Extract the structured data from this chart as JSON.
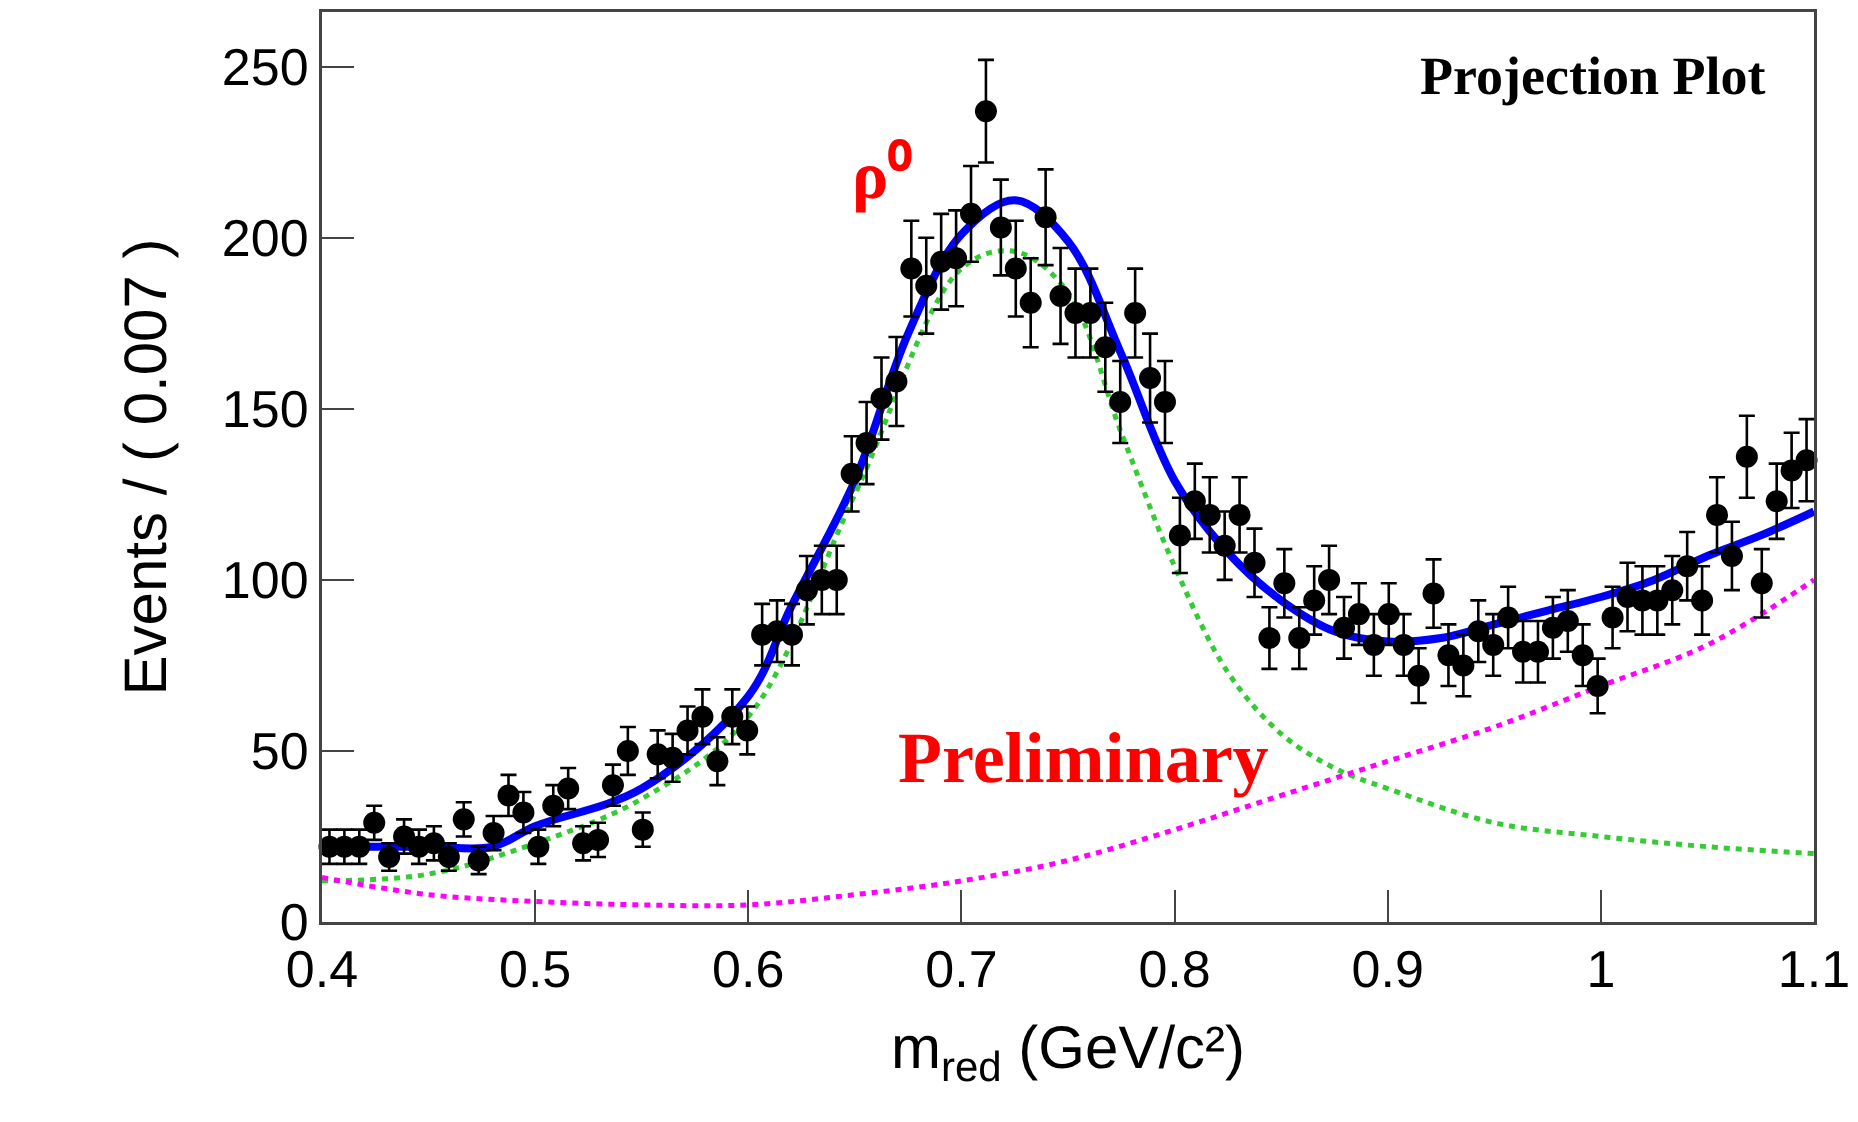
{
  "chart_data": {
    "type": "scatter",
    "xlabel": "m$_{red}$ (GeV/c²)",
    "ylabel": "Events / ( 0.007 )",
    "annotations": [
      "Projection Plot",
      "ρ⁰",
      "Preliminary"
    ],
    "x": [
      0.4035,
      0.4105,
      0.4175,
      0.4245,
      0.4315,
      0.4385,
      0.4455,
      0.4525,
      0.4595,
      0.4665,
      0.4735,
      0.4805,
      0.4875,
      0.4945,
      0.5015,
      0.5085,
      0.5155,
      0.5225,
      0.5295,
      0.5365,
      0.5435,
      0.5505,
      0.5575,
      0.5645,
      0.5715,
      0.5785,
      0.5855,
      0.5925,
      0.5995,
      0.6065,
      0.6135,
      0.6205,
      0.6275,
      0.6345,
      0.6415,
      0.6485,
      0.6555,
      0.6625,
      0.6695,
      0.6765,
      0.6835,
      0.6905,
      0.6975,
      0.7045,
      0.7115,
      0.7185,
      0.7255,
      0.7325,
      0.7395,
      0.7465,
      0.7535,
      0.7605,
      0.7675,
      0.7745,
      0.7815,
      0.7885,
      0.7955,
      0.8025,
      0.8095,
      0.8165,
      0.8235,
      0.8305,
      0.8375,
      0.8445,
      0.8515,
      0.8585,
      0.8655,
      0.8725,
      0.8795,
      0.8865,
      0.8935,
      0.9005,
      0.9075,
      0.9145,
      0.9215,
      0.9285,
      0.9355,
      0.9425,
      0.9495,
      0.9565,
      0.9635,
      0.9705,
      0.9775,
      0.9845,
      0.9915,
      0.9985,
      1.0055,
      1.0125,
      1.0195,
      1.0265,
      1.0335,
      1.0405,
      1.0475,
      1.0545,
      1.0615,
      1.0685,
      1.0755,
      1.0825,
      1.0895,
      1.0965
    ],
    "series": [
      {
        "color": "#000000",
        "marker": "circle",
        "values": [
          22,
          22,
          22,
          29,
          19,
          25,
          22,
          23,
          19,
          30,
          18,
          26,
          37,
          32,
          22,
          34,
          39,
          23,
          24,
          40,
          50,
          27,
          49,
          48,
          56,
          60,
          47,
          60,
          56,
          84,
          85,
          84,
          97,
          100,
          100,
          131,
          140,
          153,
          158,
          191,
          186,
          193,
          194,
          207,
          237,
          203,
          191,
          181,
          206,
          183,
          178,
          178,
          168,
          152,
          178,
          159,
          152,
          113,
          123,
          119,
          110,
          119,
          105,
          83,
          99,
          83,
          94,
          100,
          86,
          90,
          81,
          90,
          81,
          72,
          96,
          78,
          75,
          85,
          81,
          89,
          79,
          79,
          86,
          88,
          78,
          69,
          89,
          95,
          94,
          94,
          97,
          104,
          94,
          119,
          107,
          136,
          99,
          123,
          132,
          135
        ],
        "errors": [
          5,
          5,
          5,
          5,
          4,
          5,
          5,
          5,
          4,
          5,
          4,
          5,
          6,
          6,
          5,
          6,
          6,
          5,
          5,
          6,
          7,
          5,
          7,
          7,
          7,
          8,
          7,
          8,
          7,
          9,
          9,
          9,
          10,
          10,
          10,
          11,
          12,
          12,
          13,
          14,
          14,
          14,
          14,
          14,
          15,
          14,
          14,
          13,
          14,
          14,
          13,
          13,
          13,
          12,
          13,
          13,
          12,
          11,
          11,
          11,
          10,
          11,
          10,
          9,
          10,
          9,
          10,
          10,
          9,
          9,
          9,
          9,
          9,
          8,
          10,
          9,
          9,
          9,
          9,
          9,
          9,
          9,
          9,
          9,
          9,
          8,
          9,
          10,
          10,
          10,
          10,
          10,
          10,
          11,
          10,
          12,
          10,
          11,
          11,
          12
        ]
      },
      {
        "type": "line",
        "color": "#0000ff",
        "line_style": "solid",
        "x": [
          0.4,
          0.45,
          0.48,
          0.5,
          0.55,
          0.6,
          0.62,
          0.65,
          0.675,
          0.7,
          0.725,
          0.75,
          0.775,
          0.8,
          0.825,
          0.85,
          0.875,
          0.9,
          0.925,
          0.95,
          0.975,
          1.0,
          1.025,
          1.05,
          1.075,
          1.1
        ],
        "values": [
          22,
          22,
          22,
          28,
          39,
          66,
          92,
          129,
          172,
          201,
          211,
          199,
          166,
          129,
          108,
          94,
          85,
          82,
          83,
          87,
          91,
          95,
          100,
          107,
          113,
          120
        ]
      },
      {
        "type": "line",
        "color": "#33cc33",
        "line_style": "dotted",
        "x": [
          0.4,
          0.45,
          0.5,
          0.55,
          0.6,
          0.65,
          0.7,
          0.725,
          0.75,
          0.775,
          0.8,
          0.825,
          0.85,
          0.875,
          0.9,
          0.95,
          1.0,
          1.05,
          1.1
        ],
        "values": [
          12,
          14,
          23,
          36,
          60,
          125,
          191,
          196,
          184,
          143,
          104,
          73,
          55,
          45,
          39,
          29,
          25,
          22,
          20
        ]
      },
      {
        "type": "line",
        "color": "#ff00ff",
        "line_style": "dotted",
        "x": [
          0.4,
          0.45,
          0.5,
          0.55,
          0.6,
          0.65,
          0.7,
          0.75,
          0.8,
          0.85,
          0.9,
          0.95,
          1.0,
          1.05,
          1.1
        ],
        "values": [
          13,
          8,
          6,
          5,
          5,
          8,
          12,
          18,
          27,
          37,
          47,
          57,
          69,
          81,
          100
        ]
      }
    ],
    "xlim": [
      0.4,
      1.1
    ],
    "xticks": [
      0.4,
      0.5,
      0.6,
      0.7,
      0.8,
      0.9,
      1,
      1.1
    ],
    "ylim": [
      0,
      266
    ],
    "yticks": [
      0,
      50,
      100,
      150,
      200,
      250
    ],
    "grid": false
  }
}
